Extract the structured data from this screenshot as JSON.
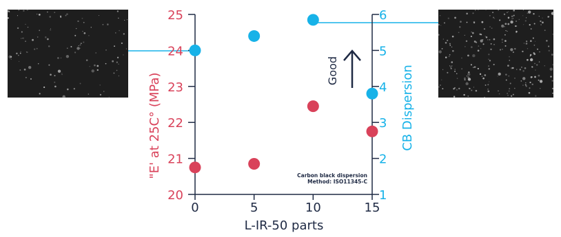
{
  "chart_data": {
    "type": "scatter",
    "xlabel": "L-IR-50 parts",
    "ylabel_left": "\"E' at 25C° (MPa)",
    "ylabel_right": "CB Dispersion",
    "xlim": [
      0,
      15
    ],
    "ylim_left": [
      20,
      25
    ],
    "ylim_right": [
      1,
      6
    ],
    "x_ticks": [
      "0",
      "5",
      "10",
      "15"
    ],
    "y_left_ticks": [
      "20",
      "21",
      "22",
      "23",
      "24",
      "25"
    ],
    "y_right_ticks": [
      "1",
      "2",
      "3",
      "4",
      "5",
      "6"
    ],
    "series": [
      {
        "axis": "left",
        "color": "#d9425a",
        "x": [
          0,
          5,
          10,
          15
        ],
        "y": [
          20.75,
          20.85,
          22.45,
          21.75
        ]
      },
      {
        "axis": "right",
        "color": "#17b2e8",
        "x": [
          0,
          5,
          10,
          15
        ],
        "y": [
          5.0,
          5.4,
          5.85,
          3.8
        ]
      }
    ],
    "annotation_good": "Good",
    "note_line1": "Carbon black dispersion",
    "note_line2": "Method: ISO11345-C",
    "colors": {
      "left_axis": "#d9425a",
      "right_axis": "#17b2e8",
      "axis_dark": "#1f2a44"
    }
  }
}
